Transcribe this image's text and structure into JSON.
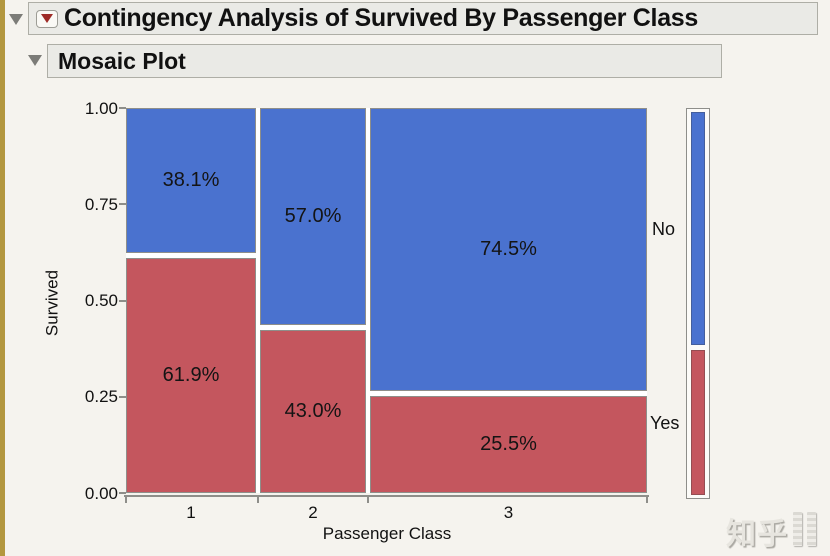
{
  "window": {
    "title": "Contingency Analysis of Survived By Passenger Class"
  },
  "section": {
    "title": "Mosaic Plot"
  },
  "chart_data": {
    "type": "mosaic",
    "title": "Contingency Analysis of Survived By Passenger Class",
    "xlabel": "Passenger Class",
    "ylabel": "Survived",
    "categories": [
      "1",
      "2",
      "3"
    ],
    "category_width_fractions": [
      0.2531,
      0.2066,
      0.5403
    ],
    "y_axis_ticks": [
      "1.00",
      "0.75",
      "0.50",
      "0.25",
      "0.00"
    ],
    "ylim": [
      0,
      1
    ],
    "grid": false,
    "legend_position": "right",
    "legend": [
      "No",
      "Yes"
    ],
    "series": [
      {
        "name": "No",
        "color": "#4a72cf",
        "values_pct": [
          38.1,
          57.0,
          74.5
        ]
      },
      {
        "name": "Yes",
        "color": "#c4565e",
        "values_pct": [
          61.9,
          43.0,
          25.5
        ]
      }
    ],
    "cell_labels": {
      "No": [
        "38.1%",
        "57.0%",
        "74.5%"
      ],
      "Yes": [
        "61.9%",
        "43.0%",
        "25.5%"
      ]
    },
    "overall_distribution": {
      "No": 0.617,
      "Yes": 0.383
    }
  },
  "watermark": {
    "text": "知乎"
  },
  "colors": {
    "no_blue": "#4a72cf",
    "yes_red": "#c4565e",
    "page_bg": "#f5f3ee",
    "header_bg": "#eaeae6",
    "header_border": "#aeaea6",
    "gold_strip": "#b3973f",
    "axis_gray": "#8e8e8a",
    "red_triangle": "#9e2b27",
    "disclosure_gray": "#7c7c78"
  }
}
